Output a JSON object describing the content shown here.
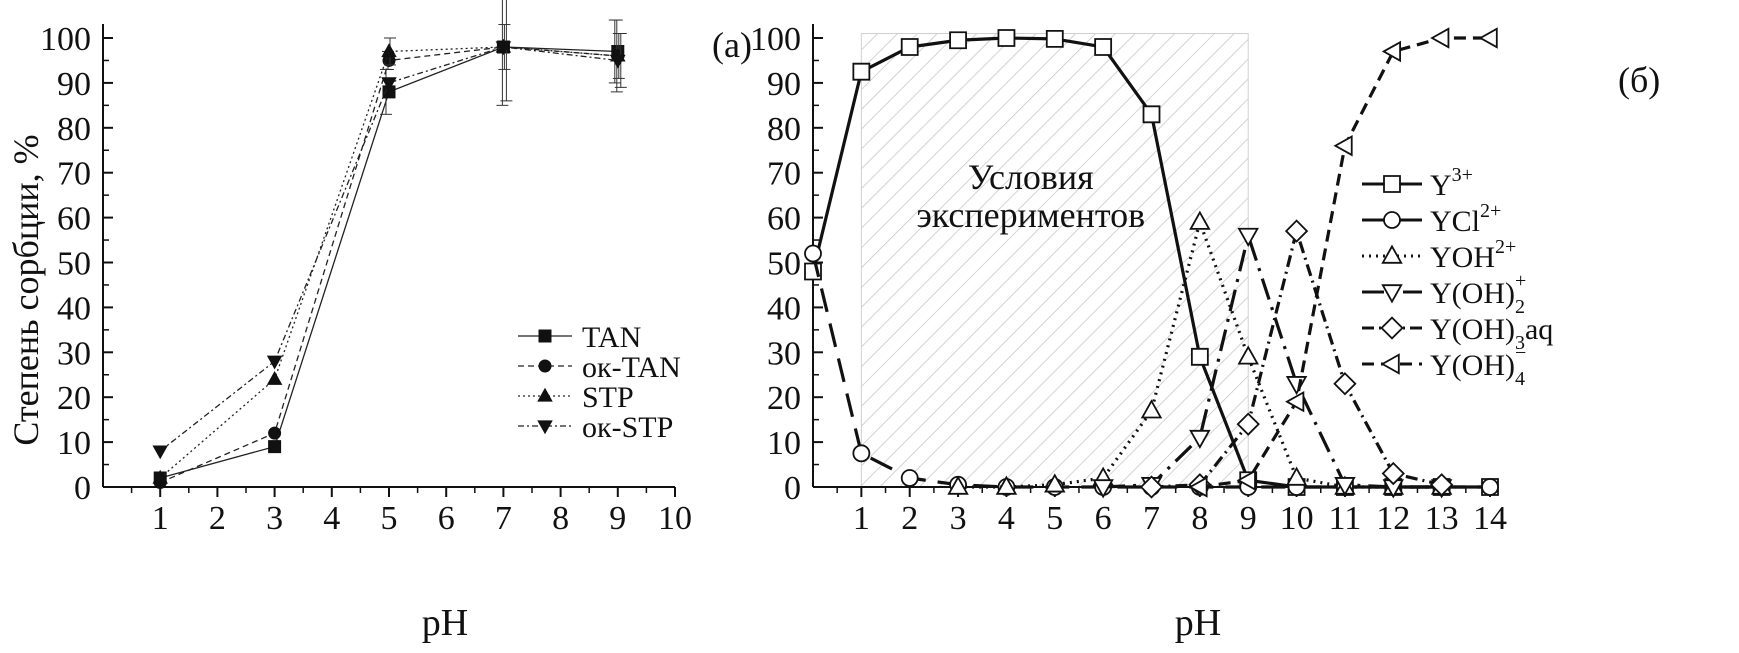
{
  "chart_data": [
    {
      "type": "line",
      "panel_label": "(a)",
      "xlabel": "pH",
      "ylabel": "Степень сорбции, %",
      "xlim": [
        0,
        10
      ],
      "ylim": [
        0,
        100
      ],
      "xticks": [
        "1",
        "2",
        "3",
        "4",
        "5",
        "6",
        "7",
        "8",
        "9",
        "10"
      ],
      "yticks": [
        "0",
        "10",
        "20",
        "30",
        "40",
        "50",
        "60",
        "70",
        "80",
        "90",
        "100"
      ],
      "legend_position": "bottom-right",
      "series": [
        {
          "name": "TAN",
          "marker": "square",
          "dash": "solid",
          "x": [
            1,
            3,
            5,
            7,
            9
          ],
          "y": [
            2,
            9,
            88,
            98,
            97
          ],
          "err": [
            0,
            0,
            5,
            0,
            7
          ]
        },
        {
          "name": "ок-TAN",
          "marker": "circle",
          "dash": "dashed",
          "x": [
            1,
            3,
            5,
            7,
            9
          ],
          "y": [
            1,
            12,
            95,
            98,
            96
          ],
          "err": [
            0,
            0,
            2,
            13,
            8
          ]
        },
        {
          "name": "STP",
          "marker": "triangle-up",
          "dash": "dotted",
          "x": [
            1,
            3,
            5,
            7,
            9
          ],
          "y": [
            2,
            24,
            97,
            98,
            96
          ],
          "err": [
            0,
            0,
            3,
            5,
            5
          ]
        },
        {
          "name": "ок-STP",
          "marker": "triangle-down",
          "dash": "dashdot",
          "x": [
            1,
            3,
            5,
            7,
            9
          ],
          "y": [
            8,
            28,
            90,
            98,
            95
          ],
          "err": [
            0,
            0,
            0,
            12,
            6
          ]
        }
      ]
    },
    {
      "type": "line",
      "panel_label": "(б)",
      "xlabel": "pH",
      "ylabel": "",
      "xlim": [
        0,
        14
      ],
      "ylim": [
        0,
        100
      ],
      "xticks": [
        "1",
        "2",
        "3",
        "4",
        "5",
        "6",
        "7",
        "8",
        "9",
        "10",
        "11",
        "12",
        "13",
        "14"
      ],
      "yticks": [
        "0",
        "10",
        "20",
        "30",
        "40",
        "50",
        "60",
        "70",
        "80",
        "90",
        "100"
      ],
      "legend_position": "right",
      "shaded_region": {
        "x": [
          1,
          9
        ],
        "label_lines": [
          "Условия",
          "экспериментов"
        ]
      },
      "series": [
        {
          "name": "Y",
          "name_sup": "3+",
          "name_sub": "",
          "marker": "square",
          "dash": "solid",
          "x": [
            0,
            1,
            2,
            3,
            4,
            5,
            6,
            7,
            8,
            9,
            10,
            11,
            12,
            13,
            14
          ],
          "y": [
            48,
            92.5,
            98,
            99.5,
            100,
            99.8,
            98,
            83,
            29,
            1.5,
            0,
            0,
            0,
            0,
            0
          ]
        },
        {
          "name": "YCl",
          "name_sup": "2+",
          "name_sub": "",
          "marker": "circle",
          "dash": "longdash",
          "x": [
            0,
            1,
            2,
            3,
            4,
            5,
            6,
            7,
            8,
            9,
            10,
            11,
            12,
            13,
            14
          ],
          "y": [
            52,
            7.5,
            2,
            0.5,
            0,
            0,
            0,
            0,
            0,
            0,
            0,
            0,
            0,
            0,
            0
          ]
        },
        {
          "name": "YOH",
          "name_sup": "2+",
          "name_sub": "",
          "marker": "triangle-up",
          "dash": "dotted",
          "x": [
            3,
            4,
            5,
            6,
            7,
            8,
            9,
            10,
            11,
            12,
            13
          ],
          "y": [
            0,
            0,
            0.5,
            2,
            17,
            59,
            29,
            2,
            0,
            0,
            0
          ]
        },
        {
          "name": "Y(OH)",
          "name_sup": "+",
          "name_sub": "2",
          "marker": "triangle-down",
          "dash": "longdashdot",
          "x": [
            6,
            7,
            8,
            9,
            10,
            11,
            12,
            13
          ],
          "y": [
            0,
            0.5,
            11,
            56,
            23,
            0.5,
            0,
            0
          ]
        },
        {
          "name": "Y(OH)",
          "name_sup": "",
          "name_sub": "3",
          "name_suffix": "aq",
          "marker": "diamond",
          "dash": "dashdot",
          "x": [
            7,
            8,
            9,
            10,
            11,
            12,
            13
          ],
          "y": [
            0,
            0.5,
            14,
            57,
            23,
            3,
            0.5
          ]
        },
        {
          "name": "Y(OH)",
          "name_sup": "−",
          "name_sub": "4",
          "marker": "triangle-left",
          "dash": "dashed",
          "x": [
            8,
            9,
            10,
            11,
            12,
            13,
            14
          ],
          "y": [
            0,
            1.5,
            19,
            76,
            97,
            100,
            100
          ]
        }
      ]
    }
  ]
}
